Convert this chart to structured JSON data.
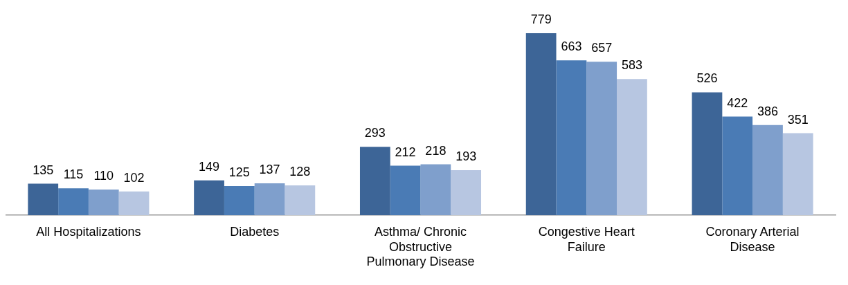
{
  "chart_data": {
    "type": "bar",
    "categories": [
      "All Hospitalizations",
      "Diabetes",
      "Asthma/ Chronic Obstructive Pulmonary Disease",
      "Congestive Heart Failure",
      "Coronary Arterial Disease"
    ],
    "series": [
      {
        "color": "#3d6597",
        "values": [
          135,
          149,
          293,
          779,
          526
        ]
      },
      {
        "color": "#4a7bb5",
        "values": [
          115,
          125,
          212,
          663,
          422
        ]
      },
      {
        "color": "#7f9fcc",
        "values": [
          110,
          137,
          218,
          657,
          386
        ]
      },
      {
        "color": "#b7c6e1",
        "values": [
          102,
          128,
          193,
          583,
          351
        ]
      }
    ],
    "data_labels": true,
    "grid": false,
    "legend": false
  }
}
